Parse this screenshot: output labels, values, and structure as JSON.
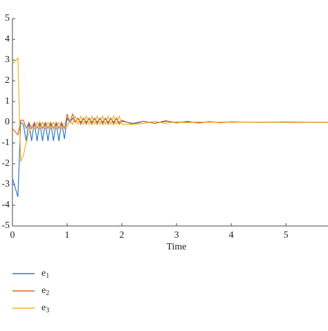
{
  "chart_data": {
    "type": "line",
    "xlabel": "Time",
    "x": [
      0,
      0.1,
      0.15,
      0.2,
      0.25,
      0.3,
      0.35,
      0.4,
      0.45,
      0.5,
      0.55,
      0.6,
      0.65,
      0.7,
      0.75,
      0.8,
      0.85,
      0.9,
      0.95,
      1.0,
      1.05,
      1.1,
      1.15,
      1.2,
      1.25,
      1.3,
      1.35,
      1.4,
      1.45,
      1.5,
      1.55,
      1.6,
      1.65,
      1.7,
      1.75,
      1.8,
      1.85,
      1.9,
      1.95,
      2.0,
      2.2,
      2.4,
      2.6,
      2.8,
      3.0,
      3.2,
      3.4,
      3.6,
      3.8,
      4.0,
      4.5,
      5.0,
      5.5,
      5.77
    ],
    "series": [
      {
        "name": "e1",
        "color": "#2e75d6",
        "values": [
          -2.7,
          -3.6,
          0,
          -0.1,
          -0.9,
          0,
          -0.9,
          0,
          -0.9,
          0,
          -0.9,
          0,
          -0.9,
          0,
          -0.9,
          0,
          -0.9,
          0,
          -0.8,
          0.2,
          0,
          0.2,
          0,
          0.2,
          0,
          0.2,
          0,
          0.2,
          0,
          0.2,
          0,
          0.2,
          0,
          0.2,
          0,
          0.2,
          0,
          0.2,
          0,
          0.05,
          -0.05,
          0.05,
          -0.05,
          0.05,
          0,
          0.03,
          -0.03,
          0.02,
          0,
          0.02,
          0,
          0,
          0,
          0
        ]
      },
      {
        "name": "e2",
        "color": "#e3621b",
        "values": [
          -0.3,
          -0.6,
          0.1,
          0.1,
          -0.3,
          0,
          -0.3,
          0,
          -0.3,
          0,
          -0.3,
          0,
          -0.3,
          0,
          -0.3,
          0,
          -0.3,
          0,
          -0.3,
          0.4,
          0,
          0.4,
          0,
          0.2,
          -0.1,
          0.2,
          -0.1,
          0.2,
          -0.1,
          0.2,
          -0.1,
          0.2,
          -0.1,
          0.2,
          -0.1,
          0.2,
          -0.1,
          0.2,
          -0.1,
          0.1,
          -0.1,
          0.05,
          -0.05,
          0.08,
          -0.03,
          0.05,
          -0.03,
          0.04,
          -0.02,
          0.02,
          0,
          0.02,
          0,
          0
        ]
      },
      {
        "name": "e3",
        "color": "#f2b01e",
        "values": [
          2.8,
          3.1,
          -1.9,
          -1.6,
          -1.0,
          -0.5,
          -0.2,
          -0.3,
          0,
          -0.3,
          0,
          -0.3,
          0,
          -0.3,
          0,
          -0.3,
          0,
          -0.3,
          -0.2,
          -0.2,
          0.1,
          -0.1,
          0.3,
          -0.1,
          0.3,
          -0.1,
          0.3,
          -0.1,
          0.3,
          -0.1,
          0.3,
          -0.1,
          0.3,
          -0.1,
          0.3,
          -0.1,
          0.3,
          -0.1,
          0.3,
          -0.1,
          -0.1,
          -0.05,
          0.05,
          -0.05,
          0.02,
          -0.02,
          0.02,
          0,
          0.01,
          0,
          0.01,
          0,
          0,
          0
        ]
      }
    ],
    "xlim": [
      0,
      5.77
    ],
    "ylim": [
      -5,
      5
    ],
    "xticks": [
      0,
      1,
      2,
      3,
      4,
      5
    ],
    "yticks": [
      -5,
      -4,
      -3,
      -2,
      -1,
      0,
      1,
      2,
      3,
      4,
      5
    ],
    "legend": "bottom-left"
  }
}
